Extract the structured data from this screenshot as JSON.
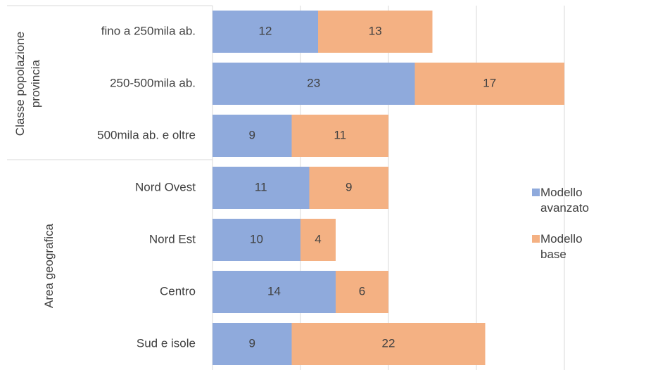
{
  "chart_data": {
    "type": "stacked_bar_horizontal",
    "groups": [
      {
        "name": "Classe popolazione provincia",
        "categories": [
          "fino a 250mila ab.",
          "250-500mila ab.",
          "500mila ab. e oltre"
        ]
      },
      {
        "name": "Area geografica",
        "categories": [
          "Nord Ovest",
          "Nord Est",
          "Centro",
          "Sud e isole"
        ]
      }
    ],
    "series": [
      {
        "name": "Modello avanzato",
        "color": "#8faadc",
        "values": [
          12,
          23,
          9,
          11,
          10,
          14,
          9
        ]
      },
      {
        "name": "Modello base",
        "color": "#f4b183",
        "values": [
          13,
          17,
          11,
          9,
          4,
          6,
          22
        ]
      }
    ],
    "xlim": [
      0,
      40
    ],
    "xticks": [
      0,
      10,
      20,
      30,
      40
    ],
    "grid": true,
    "legend": "right"
  }
}
